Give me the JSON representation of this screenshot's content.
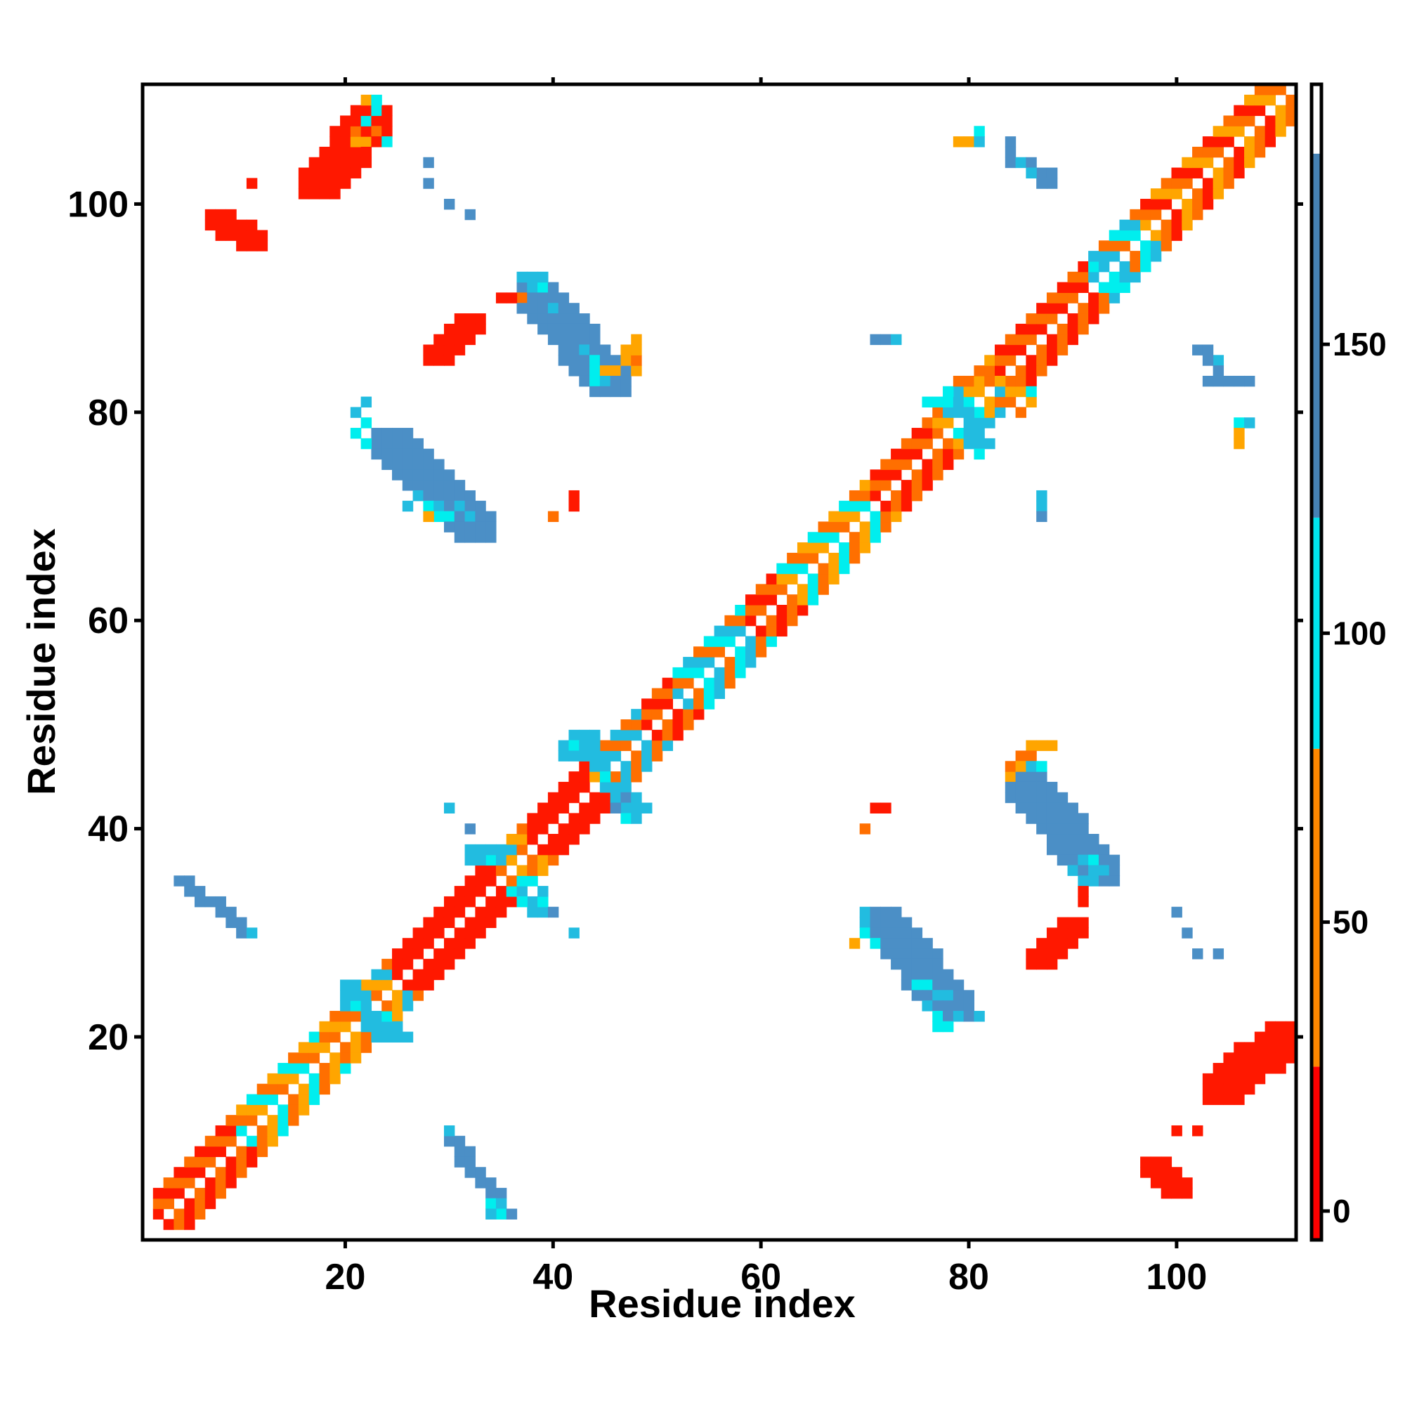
{
  "chart_data": {
    "type": "heatmap",
    "title": "",
    "xlabel": "Residue index",
    "ylabel": "Residue index",
    "xlim": [
      1,
      111
    ],
    "ylim": [
      1,
      111
    ],
    "x_ticks": [
      20,
      40,
      60,
      80,
      100
    ],
    "y_ticks": [
      20,
      40,
      60,
      80,
      100
    ],
    "grid": false,
    "colorbar": {
      "ticks": [
        0,
        50,
        100,
        150
      ],
      "range": [
        -5,
        195
      ],
      "segments": [
        {
          "from": -5,
          "to": 25,
          "color": "#ff0000"
        },
        {
          "from": 25,
          "to": 80,
          "color": "#ff8800"
        },
        {
          "from": 80,
          "to": 120,
          "color": "#00e5ee"
        },
        {
          "from": 120,
          "to": 183,
          "color": "#4682b4"
        },
        {
          "from": 183,
          "to": 195,
          "color": "#ffffff"
        }
      ]
    },
    "cell_colors": {
      "R": "#ff1800",
      "O": "#ff6f00",
      "Y": "#ffa500",
      "C": "#00eeee",
      "S": "#22bce0",
      "B": "#4b8fc6"
    },
    "diagonal": {
      "from": 2,
      "to": 110,
      "segments": [
        {
          "from": 2,
          "to": 9,
          "colors": [
            "O",
            "R"
          ]
        },
        {
          "from": 10,
          "to": 17,
          "colors": [
            "O",
            "Y",
            "C"
          ]
        },
        {
          "from": 18,
          "to": 21,
          "colors": [
            "O",
            "Y"
          ]
        },
        {
          "from": 22,
          "to": 24,
          "colors": [
            "O",
            "Y",
            "S"
          ]
        },
        {
          "from": 25,
          "to": 34,
          "colors": [
            "R"
          ]
        },
        {
          "from": 35,
          "to": 37,
          "colors": [
            "O",
            "Y"
          ]
        },
        {
          "from": 38,
          "to": 44,
          "colors": [
            "R"
          ]
        },
        {
          "from": 45,
          "to": 48,
          "colors": [
            "O",
            "S"
          ]
        },
        {
          "from": 49,
          "to": 51,
          "colors": [
            "R",
            "O"
          ]
        },
        {
          "from": 52,
          "to": 58,
          "colors": [
            "O",
            "C",
            "S"
          ]
        },
        {
          "from": 59,
          "to": 61,
          "colors": [
            "R",
            "O"
          ]
        },
        {
          "from": 62,
          "to": 70,
          "colors": [
            "O",
            "Y",
            "C"
          ]
        },
        {
          "from": 71,
          "to": 76,
          "colors": [
            "R",
            "O"
          ]
        },
        {
          "from": 77,
          "to": 82,
          "colors": [
            "O",
            "Y",
            "S"
          ]
        },
        {
          "from": 83,
          "to": 91,
          "colors": [
            "R",
            "O"
          ]
        },
        {
          "from": 92,
          "to": 96,
          "colors": [
            "O",
            "C",
            "S"
          ]
        },
        {
          "from": 97,
          "to": 110,
          "colors": [
            "O",
            "R",
            "Y"
          ]
        }
      ]
    },
    "bands": [
      {
        "x1": 4,
        "y1": 35,
        "x2": 10,
        "y2": 30,
        "w": 2,
        "color": "B"
      },
      {
        "x1": 30,
        "y1": 10,
        "x2": 35,
        "y2": 3,
        "w": 2,
        "color": "B"
      },
      {
        "x1": 23,
        "y1": 78,
        "x2": 31,
        "y2": 70,
        "w": 4,
        "color": "B"
      },
      {
        "x1": 70,
        "y1": 32,
        "x2": 77,
        "y2": 24,
        "w": 4,
        "color": "B"
      },
      {
        "x1": 37,
        "y1": 92,
        "x2": 44,
        "y2": 84,
        "w": 4,
        "color": "B"
      },
      {
        "x1": 84,
        "y1": 45,
        "x2": 91,
        "y2": 37,
        "w": 4,
        "color": "B"
      },
      {
        "x1": 7,
        "y1": 99,
        "x2": 10,
        "y2": 97,
        "w": 3,
        "color": "R"
      },
      {
        "x1": 97,
        "y1": 8,
        "x2": 99,
        "y2": 6,
        "w": 3,
        "color": "R"
      },
      {
        "x1": 16,
        "y1": 103,
        "x2": 21,
        "y2": 109,
        "w": 4,
        "color": "R"
      },
      {
        "x1": 103,
        "y1": 16,
        "x2": 109,
        "y2": 21,
        "w": 4,
        "color": "R"
      },
      {
        "x1": 28,
        "y1": 86,
        "x2": 31,
        "y2": 89,
        "w": 3,
        "color": "R"
      },
      {
        "x1": 86,
        "y1": 28,
        "x2": 89,
        "y2": 31,
        "w": 3,
        "color": "R"
      }
    ],
    "cells": [
      [
        21,
        78,
        "C"
      ],
      [
        22,
        77,
        "C"
      ],
      [
        21,
        80,
        "S"
      ],
      [
        22,
        81,
        "S"
      ],
      [
        22,
        79,
        "C"
      ],
      [
        28,
        70,
        "Y"
      ],
      [
        29,
        70,
        "C"
      ],
      [
        30,
        70,
        "C"
      ],
      [
        31,
        71,
        "S"
      ],
      [
        32,
        70,
        "S"
      ],
      [
        26,
        71,
        "S"
      ],
      [
        27,
        72,
        "S"
      ],
      [
        28,
        71,
        "C"
      ],
      [
        29,
        71,
        "S"
      ],
      [
        42,
        72,
        "R"
      ],
      [
        42,
        71,
        "R"
      ],
      [
        40,
        70,
        "O"
      ],
      [
        70,
        30,
        "C"
      ],
      [
        70,
        31,
        "S"
      ],
      [
        69,
        29,
        "Y"
      ],
      [
        70,
        32,
        "S"
      ],
      [
        71,
        29,
        "C"
      ],
      [
        75,
        25,
        "C"
      ],
      [
        76,
        25,
        "C"
      ],
      [
        77,
        24,
        "S"
      ],
      [
        78,
        24,
        "S"
      ],
      [
        77,
        21,
        "C"
      ],
      [
        78,
        21,
        "C"
      ],
      [
        79,
        22,
        "S"
      ],
      [
        81,
        22,
        "S"
      ],
      [
        77,
        22,
        "C"
      ],
      [
        76,
        23,
        "S"
      ],
      [
        71,
        42,
        "R"
      ],
      [
        72,
        42,
        "R"
      ],
      [
        70,
        40,
        "O"
      ],
      [
        86,
        48,
        "Y"
      ],
      [
        87,
        48,
        "Y"
      ],
      [
        88,
        48,
        "Y"
      ],
      [
        85,
        47,
        "O"
      ],
      [
        86,
        47,
        "O"
      ],
      [
        84,
        46,
        "O"
      ],
      [
        85,
        46,
        "Y"
      ],
      [
        86,
        46,
        "S"
      ],
      [
        87,
        46,
        "C"
      ],
      [
        84,
        45,
        "Y"
      ],
      [
        91,
        37,
        "S"
      ],
      [
        92,
        36,
        "S"
      ],
      [
        92,
        37,
        "C"
      ],
      [
        93,
        36,
        "S"
      ],
      [
        91,
        35,
        "S"
      ],
      [
        92,
        35,
        "S"
      ],
      [
        90,
        36,
        "S"
      ],
      [
        91,
        34,
        "R"
      ],
      [
        91,
        33,
        "R"
      ],
      [
        44,
        84,
        "C"
      ],
      [
        45,
        83,
        "S"
      ],
      [
        45,
        84,
        "Y"
      ],
      [
        46,
        84,
        "Y"
      ],
      [
        47,
        85,
        "Y"
      ],
      [
        47,
        86,
        "Y"
      ],
      [
        48,
        84,
        "Y"
      ],
      [
        48,
        85,
        "O"
      ],
      [
        48,
        86,
        "Y"
      ],
      [
        48,
        87,
        "Y"
      ],
      [
        44,
        85,
        "C"
      ],
      [
        43,
        86,
        "S"
      ],
      [
        44,
        83,
        "C"
      ],
      [
        35,
        91,
        "R"
      ],
      [
        36,
        91,
        "R"
      ],
      [
        37,
        91,
        "O"
      ],
      [
        38,
        92,
        "S"
      ],
      [
        37,
        93,
        "S"
      ],
      [
        38,
        93,
        "S"
      ],
      [
        39,
        93,
        "S"
      ],
      [
        39,
        92,
        "C"
      ],
      [
        40,
        90,
        "S"
      ],
      [
        28,
        104,
        "B"
      ],
      [
        28,
        102,
        "B"
      ],
      [
        30,
        100,
        "B"
      ],
      [
        32,
        99,
        "B"
      ],
      [
        11,
        102,
        "R"
      ],
      [
        22,
        110,
        "Y"
      ],
      [
        23,
        110,
        "C"
      ],
      [
        23,
        109,
        "C"
      ],
      [
        22,
        108,
        "C"
      ],
      [
        23,
        107,
        "O"
      ],
      [
        24,
        106,
        "C"
      ],
      [
        21,
        106,
        "Y"
      ],
      [
        22,
        106,
        "Y"
      ],
      [
        21,
        107,
        "O"
      ],
      [
        79,
        106,
        "Y"
      ],
      [
        80,
        106,
        "Y"
      ],
      [
        81,
        107,
        "C"
      ],
      [
        81,
        106,
        "S"
      ],
      [
        84,
        106,
        "B"
      ],
      [
        84,
        105,
        "B"
      ],
      [
        84,
        104,
        "B"
      ],
      [
        85,
        104,
        "S"
      ],
      [
        86,
        104,
        "B"
      ],
      [
        87,
        103,
        "B"
      ],
      [
        88,
        103,
        "B"
      ],
      [
        88,
        102,
        "B"
      ],
      [
        87,
        102,
        "B"
      ],
      [
        86,
        103,
        "S"
      ],
      [
        71,
        87,
        "B"
      ],
      [
        72,
        87,
        "B"
      ],
      [
        73,
        87,
        "S"
      ],
      [
        102,
        86,
        "B"
      ],
      [
        103,
        86,
        "B"
      ],
      [
        104,
        85,
        "S"
      ],
      [
        103,
        85,
        "B"
      ],
      [
        104,
        84,
        "B"
      ],
      [
        105,
        83,
        "B"
      ],
      [
        106,
        83,
        "B"
      ],
      [
        107,
        83,
        "B"
      ],
      [
        103,
        83,
        "B"
      ],
      [
        104,
        83,
        "B"
      ],
      [
        106,
        79,
        "C"
      ],
      [
        107,
        79,
        "S"
      ],
      [
        106,
        78,
        "Y"
      ],
      [
        106,
        77,
        "Y"
      ],
      [
        87,
        72,
        "S"
      ],
      [
        87,
        71,
        "S"
      ],
      [
        87,
        70,
        "B"
      ],
      [
        100,
        32,
        "B"
      ],
      [
        101,
        30,
        "B"
      ],
      [
        102,
        28,
        "B"
      ],
      [
        104,
        28,
        "B"
      ],
      [
        100,
        11,
        "R"
      ],
      [
        102,
        11,
        "R"
      ],
      [
        30,
        11,
        "S"
      ],
      [
        34,
        4,
        "C"
      ],
      [
        35,
        3,
        "C"
      ],
      [
        35,
        4,
        "S"
      ],
      [
        34,
        3,
        "S"
      ],
      [
        38,
        32,
        "S"
      ],
      [
        39,
        32,
        "S"
      ],
      [
        38,
        33,
        "S"
      ],
      [
        39,
        33,
        "C"
      ],
      [
        39,
        34,
        "S"
      ],
      [
        40,
        32,
        "B"
      ],
      [
        42,
        30,
        "S"
      ],
      [
        11,
        30,
        "S"
      ],
      [
        9,
        31,
        "B"
      ],
      [
        30,
        42,
        "S"
      ],
      [
        32,
        40,
        "B"
      ],
      [
        33,
        38,
        "S"
      ],
      [
        34,
        38,
        "S"
      ],
      [
        35,
        38,
        "S"
      ],
      [
        36,
        38,
        "S"
      ],
      [
        33,
        37,
        "S"
      ],
      [
        34,
        37,
        "C"
      ],
      [
        35,
        37,
        "S"
      ],
      [
        32,
        38,
        "S"
      ],
      [
        32,
        37,
        "S"
      ],
      [
        37,
        34,
        "S"
      ],
      [
        37,
        35,
        "C"
      ],
      [
        38,
        35,
        "C"
      ],
      [
        36,
        34,
        "C"
      ],
      [
        37,
        33,
        "C"
      ],
      [
        42,
        49,
        "S"
      ],
      [
        43,
        49,
        "S"
      ],
      [
        44,
        49,
        "S"
      ],
      [
        41,
        48,
        "S"
      ],
      [
        42,
        48,
        "C"
      ],
      [
        43,
        48,
        "S"
      ],
      [
        44,
        48,
        "S"
      ],
      [
        41,
        47,
        "S"
      ],
      [
        42,
        47,
        "S"
      ],
      [
        43,
        47,
        "S"
      ],
      [
        44,
        46,
        "S"
      ],
      [
        45,
        46,
        "S"
      ],
      [
        44,
        47,
        "S"
      ],
      [
        45,
        44,
        "S"
      ],
      [
        46,
        44,
        "S"
      ],
      [
        47,
        44,
        "S"
      ],
      [
        46,
        43,
        "S"
      ],
      [
        47,
        43,
        "B"
      ],
      [
        48,
        43,
        "S"
      ],
      [
        47,
        42,
        "S"
      ],
      [
        48,
        42,
        "S"
      ],
      [
        49,
        42,
        "S"
      ],
      [
        47,
        41,
        "C"
      ],
      [
        48,
        41,
        "S"
      ],
      [
        46,
        42,
        "B"
      ],
      [
        45,
        45,
        "C"
      ],
      [
        44,
        45,
        "Y"
      ],
      [
        20,
        25,
        "S"
      ],
      [
        21,
        25,
        "S"
      ],
      [
        20,
        24,
        "S"
      ],
      [
        21,
        24,
        "S"
      ],
      [
        22,
        24,
        "S"
      ],
      [
        20,
        23,
        "S"
      ],
      [
        21,
        23,
        "C"
      ],
      [
        22,
        22,
        "S"
      ],
      [
        23,
        22,
        "S"
      ],
      [
        24,
        22,
        "C"
      ],
      [
        22,
        21,
        "S"
      ],
      [
        23,
        21,
        "S"
      ],
      [
        24,
        21,
        "S"
      ],
      [
        25,
        21,
        "S"
      ],
      [
        23,
        20,
        "S"
      ],
      [
        24,
        20,
        "S"
      ],
      [
        25,
        20,
        "S"
      ],
      [
        26,
        20,
        "S"
      ],
      [
        78,
        82,
        "C"
      ],
      [
        79,
        82,
        "S"
      ],
      [
        76,
        81,
        "C"
      ],
      [
        77,
        81,
        "C"
      ],
      [
        78,
        81,
        "C"
      ],
      [
        79,
        81,
        "S"
      ],
      [
        80,
        81,
        "C"
      ],
      [
        80,
        80,
        "S"
      ],
      [
        81,
        80,
        "C"
      ],
      [
        81,
        79,
        "S"
      ],
      [
        81,
        78,
        "S"
      ],
      [
        82,
        79,
        "S"
      ],
      [
        81,
        77,
        "S"
      ],
      [
        82,
        77,
        "S"
      ],
      [
        81,
        76,
        "C"
      ],
      [
        79,
        78,
        "C"
      ],
      [
        80,
        79,
        "S"
      ],
      [
        80,
        77,
        "S"
      ],
      [
        83,
        83,
        "Y"
      ],
      [
        84,
        82,
        "Y"
      ],
      [
        84,
        81,
        "O"
      ],
      [
        85,
        80,
        "O"
      ],
      [
        86,
        81,
        "Y"
      ],
      [
        86,
        82,
        "C"
      ],
      [
        84,
        83,
        "O"
      ],
      [
        85,
        84,
        "O"
      ],
      [
        82,
        83,
        "O"
      ],
      [
        83,
        81,
        "O"
      ],
      [
        76,
        79,
        "O"
      ],
      [
        77,
        80,
        "O"
      ],
      [
        79,
        83,
        "O"
      ],
      [
        80,
        83,
        "O"
      ],
      [
        81,
        83,
        "Y"
      ],
      [
        93,
        92,
        "C"
      ],
      [
        94,
        93,
        "C"
      ],
      [
        95,
        92,
        "C"
      ],
      [
        94,
        91,
        "S"
      ],
      [
        96,
        93,
        "S"
      ],
      [
        93,
        94,
        "S"
      ],
      [
        92,
        93,
        "S"
      ],
      [
        95,
        94,
        "S"
      ]
    ]
  }
}
